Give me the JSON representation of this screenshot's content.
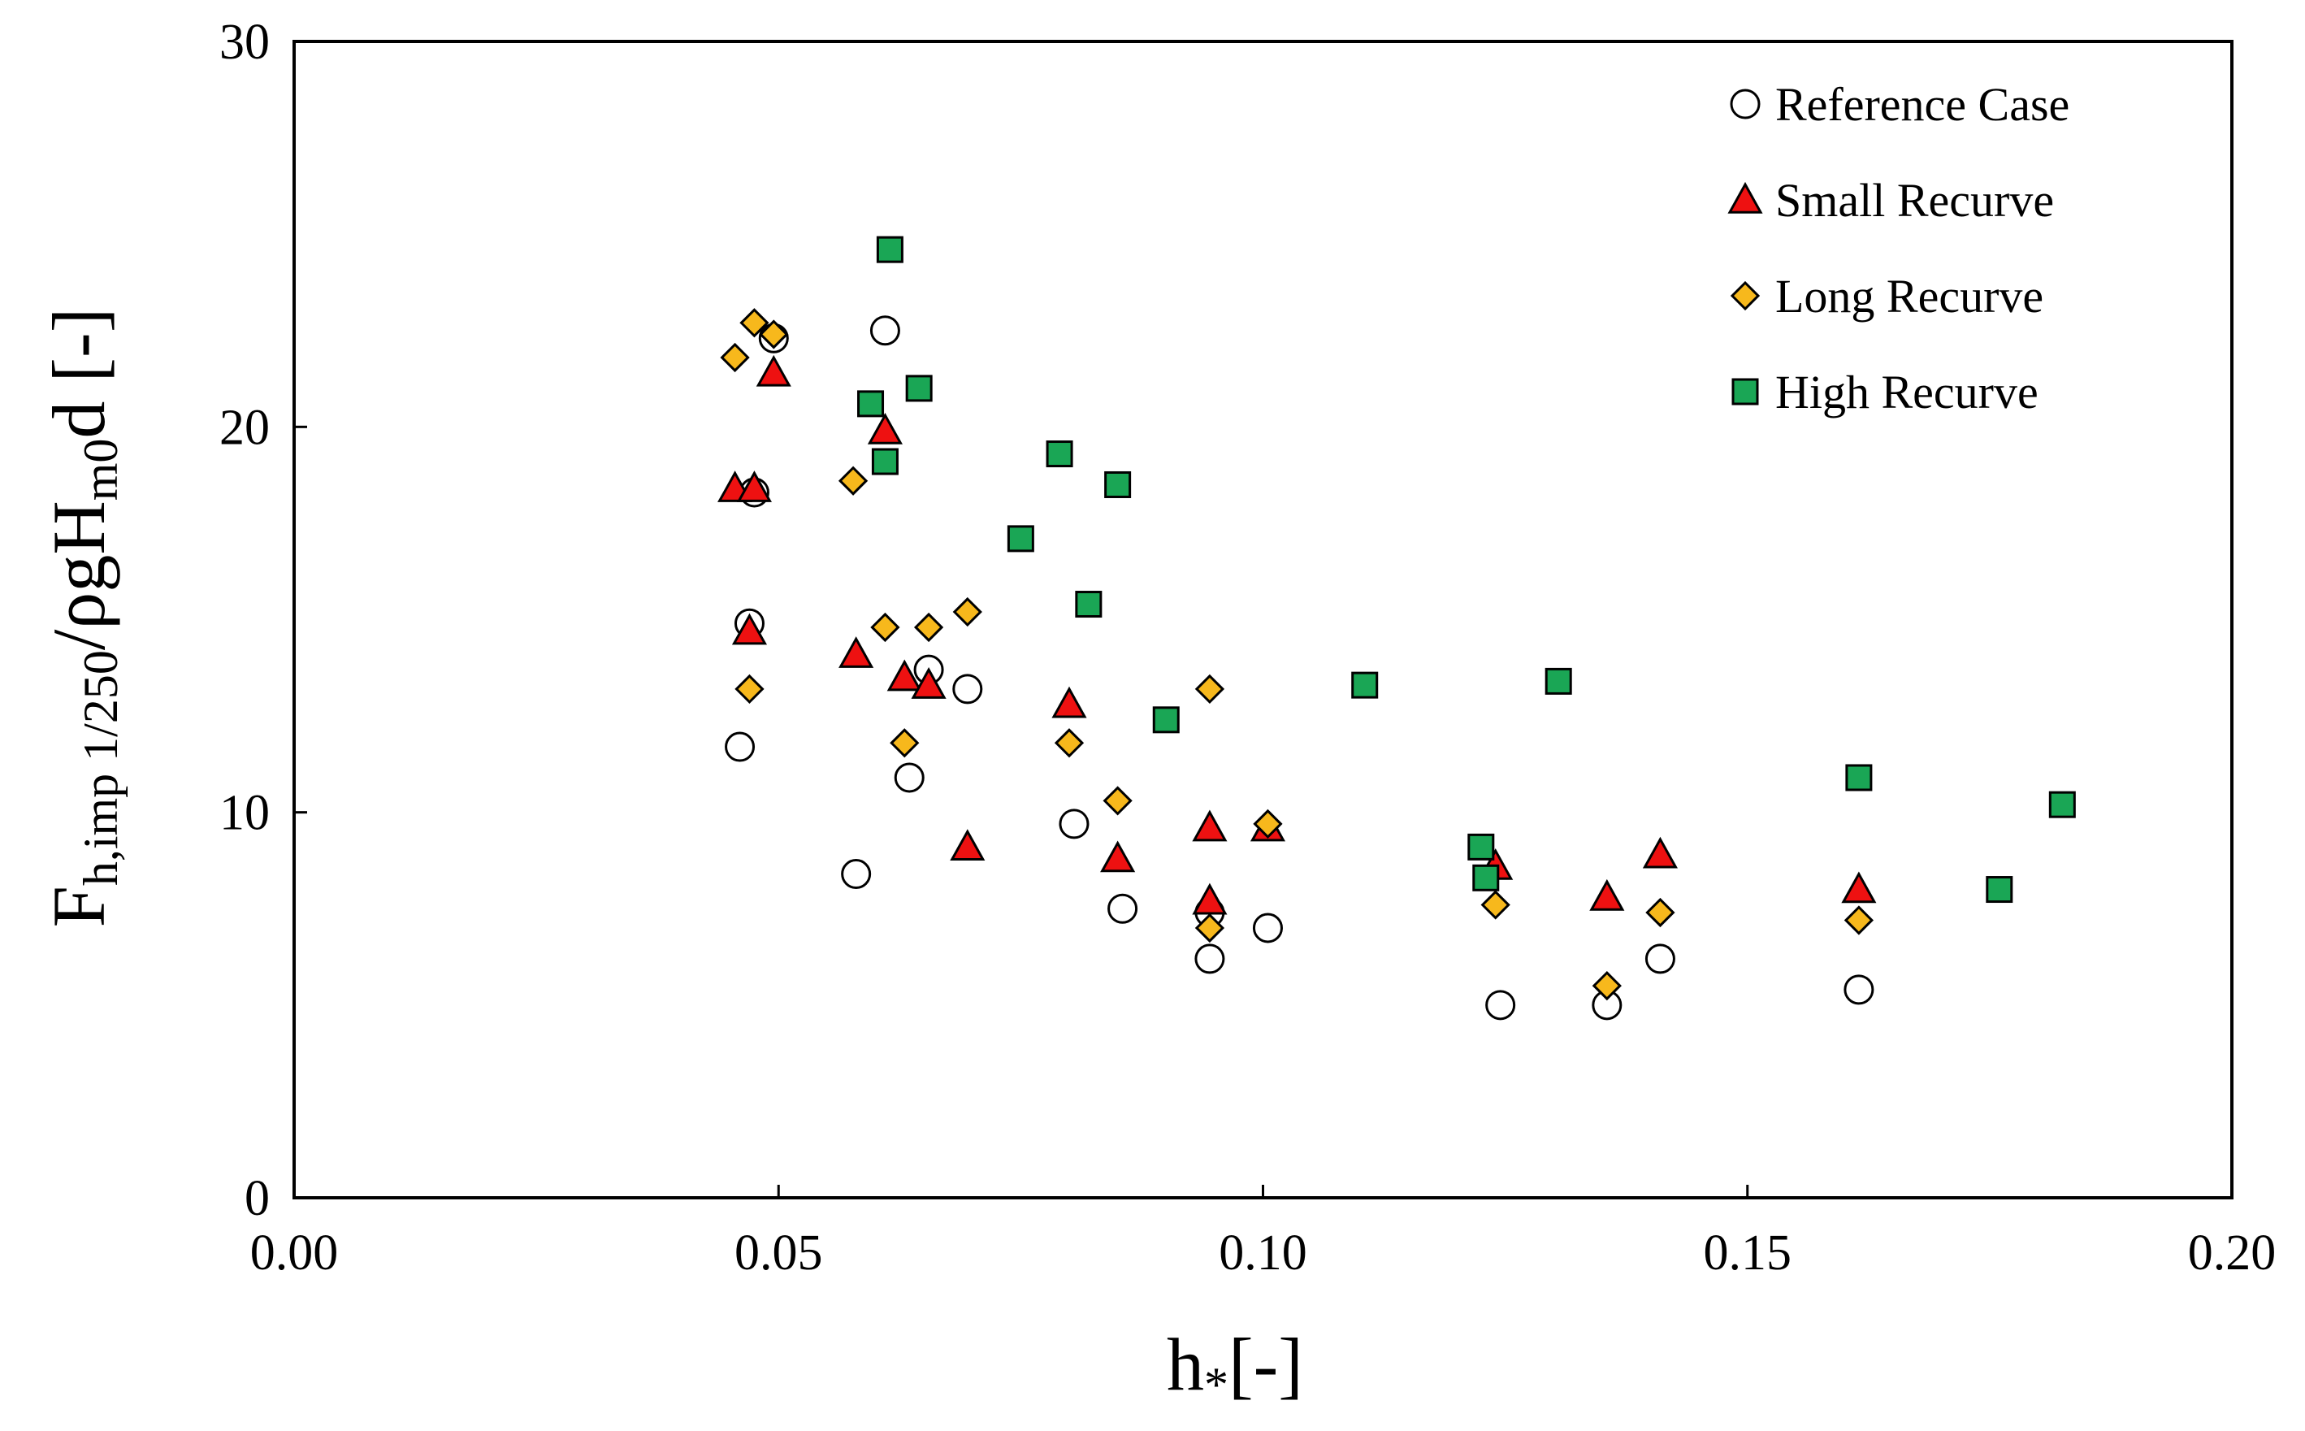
{
  "chart_data": {
    "type": "scatter",
    "title": "",
    "xlabel": "h*[-]",
    "ylabel": "F_h,imp 1/250 / ρgH_m0 d [-]",
    "xlabel_parts": {
      "base": "h",
      "sub": "*",
      "unit": "[-]"
    },
    "ylabel_parts": {
      "f": "F",
      "f_sub": "h,imp 1/250",
      "mid": "/ρgH",
      "h_sub": "m0",
      "tail": "d [-]"
    },
    "xlim": [
      0,
      0.2
    ],
    "ylim": [
      0,
      30
    ],
    "xticks": [
      0.0,
      0.05,
      0.1,
      0.15,
      0.2
    ],
    "xtick_labels": [
      "0.00",
      "0.05",
      "0.10",
      "0.15",
      "0.20"
    ],
    "yticks": [
      0,
      10,
      20,
      30
    ],
    "ytick_labels": [
      "0",
      "10",
      "20",
      "30"
    ],
    "grid": false,
    "legend_position": "top-right",
    "series": [
      {
        "name": "Reference Case",
        "marker": "circle",
        "fill": "#ffffff",
        "points": [
          [
            0.046,
            11.7
          ],
          [
            0.047,
            14.9
          ],
          [
            0.0475,
            18.3
          ],
          [
            0.0495,
            22.3
          ],
          [
            0.058,
            8.4
          ],
          [
            0.061,
            22.5
          ],
          [
            0.0635,
            10.9
          ],
          [
            0.0655,
            13.7
          ],
          [
            0.0695,
            13.2
          ],
          [
            0.0805,
            9.7
          ],
          [
            0.0855,
            7.5
          ],
          [
            0.0945,
            7.4
          ],
          [
            0.0945,
            6.2
          ],
          [
            0.1005,
            7.0
          ],
          [
            0.1245,
            5.0
          ],
          [
            0.1355,
            5.0
          ],
          [
            0.141,
            6.2
          ],
          [
            0.1615,
            5.4
          ]
        ]
      },
      {
        "name": "Small Recurve",
        "marker": "triangle",
        "fill": "#ee1111",
        "points": [
          [
            0.0455,
            18.4
          ],
          [
            0.047,
            14.7
          ],
          [
            0.0475,
            18.4
          ],
          [
            0.0495,
            21.4
          ],
          [
            0.058,
            14.1
          ],
          [
            0.061,
            19.9
          ],
          [
            0.063,
            13.5
          ],
          [
            0.0655,
            13.3
          ],
          [
            0.0695,
            9.1
          ],
          [
            0.08,
            12.8
          ],
          [
            0.085,
            8.8
          ],
          [
            0.0945,
            9.6
          ],
          [
            0.0945,
            7.7
          ],
          [
            0.1005,
            9.6
          ],
          [
            0.124,
            8.6
          ],
          [
            0.1355,
            7.8
          ],
          [
            0.141,
            8.9
          ],
          [
            0.1615,
            8.0
          ]
        ]
      },
      {
        "name": "Long Recurve",
        "marker": "diamond",
        "fill": "#f7b81c",
        "points": [
          [
            0.0455,
            21.8
          ],
          [
            0.047,
            13.2
          ],
          [
            0.0475,
            22.7
          ],
          [
            0.0495,
            22.4
          ],
          [
            0.0577,
            18.6
          ],
          [
            0.061,
            14.8
          ],
          [
            0.063,
            11.8
          ],
          [
            0.0655,
            14.8
          ],
          [
            0.0695,
            15.2
          ],
          [
            0.08,
            11.8
          ],
          [
            0.085,
            10.3
          ],
          [
            0.0945,
            13.2
          ],
          [
            0.0945,
            7.0
          ],
          [
            0.1005,
            9.7
          ],
          [
            0.124,
            7.6
          ],
          [
            0.1355,
            5.5
          ],
          [
            0.141,
            7.4
          ],
          [
            0.1615,
            7.2
          ]
        ]
      },
      {
        "name": "High Recurve",
        "marker": "square",
        "fill": "#1aa655",
        "points": [
          [
            0.0595,
            20.6
          ],
          [
            0.061,
            19.1
          ],
          [
            0.0615,
            24.6
          ],
          [
            0.0645,
            21.0
          ],
          [
            0.075,
            17.1
          ],
          [
            0.079,
            19.3
          ],
          [
            0.082,
            15.4
          ],
          [
            0.085,
            18.5
          ],
          [
            0.09,
            12.4
          ],
          [
            0.1105,
            13.3
          ],
          [
            0.1225,
            9.1
          ],
          [
            0.123,
            8.3
          ],
          [
            0.1305,
            13.4
          ],
          [
            0.1615,
            10.9
          ],
          [
            0.176,
            8.0
          ],
          [
            0.1825,
            10.2
          ]
        ]
      }
    ]
  }
}
